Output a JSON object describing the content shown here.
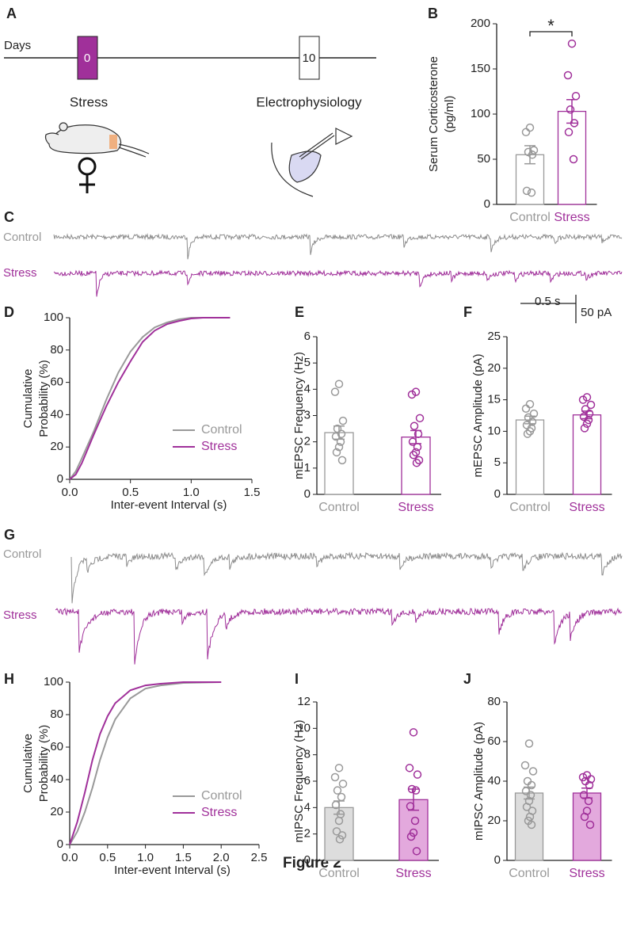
{
  "figure_title": "Figure 2",
  "panel_labels": [
    "A",
    "B",
    "C",
    "D",
    "E",
    "F",
    "G",
    "H",
    "I",
    "J"
  ],
  "timeline": {
    "axis_label": "Days",
    "day_start": "0",
    "day_end": "10",
    "event_start": "Stress",
    "event_end": "Electrophysiology"
  },
  "traces": {
    "control_label": "Control",
    "stress_label": "Stress",
    "time_scale": "0.5 s",
    "current_scale": "50 pA"
  },
  "chart_data": [
    {
      "type": "bar",
      "ylabel": [
        "Serum Corticosterone",
        "(pg/ml)"
      ],
      "categories": [
        "Control",
        "Stress"
      ],
      "values": [
        55,
        103
      ],
      "errors": [
        10,
        13
      ],
      "points": [
        [
          85,
          80,
          60,
          58,
          55,
          15,
          13
        ],
        [
          178,
          143,
          120,
          105,
          90,
          80,
          50
        ]
      ],
      "colors": [
        "#999999",
        "#a0309a"
      ],
      "fills": [
        "#ffffff",
        "#ffffff"
      ],
      "ylim": [
        0,
        200
      ],
      "yticks": [
        0,
        50,
        100,
        150,
        200
      ],
      "annotation": "*"
    },
    {
      "type": "line",
      "ylabel": [
        "Cumulative",
        "Probability (%)"
      ],
      "xlabel": "Inter-event Interval (s)",
      "series": [
        {
          "name": "Control",
          "color": "#999999",
          "x": [
            0,
            0.05,
            0.1,
            0.2,
            0.3,
            0.4,
            0.5,
            0.6,
            0.7,
            0.8,
            0.9,
            1.0,
            1.1,
            1.32
          ],
          "values": [
            0,
            5,
            13,
            30,
            49,
            66,
            79,
            88,
            94,
            97,
            99,
            100,
            100,
            100
          ]
        },
        {
          "name": "Stress",
          "color": "#a0309a",
          "x": [
            0,
            0.05,
            0.1,
            0.2,
            0.3,
            0.4,
            0.5,
            0.6,
            0.7,
            0.8,
            0.9,
            1.0,
            1.1,
            1.32
          ],
          "values": [
            0,
            3,
            10,
            28,
            45,
            60,
            73,
            85,
            92,
            96,
            98,
            99.5,
            100,
            100
          ]
        }
      ],
      "xlim": [
        0,
        1.5
      ],
      "xticks": [
        {
          "value": 0,
          "label": "0.0"
        },
        0.5,
        {
          "value": 1,
          "label": "1.0"
        },
        1.5
      ],
      "ylim": [
        0,
        100
      ],
      "yticks": [
        0,
        20,
        40,
        60,
        80,
        100
      ]
    },
    {
      "type": "bar",
      "ylabel": [
        "mEPSC Frequency (Hz)"
      ],
      "categories": [
        "Control",
        "Stress"
      ],
      "values": [
        2.35,
        2.18
      ],
      "errors": [
        0.25,
        0.25
      ],
      "points": [
        [
          4.2,
          3.9,
          2.8,
          2.5,
          2.3,
          2.2,
          2.0,
          1.8,
          1.6,
          1.3
        ],
        [
          3.9,
          3.8,
          2.9,
          2.6,
          2.3,
          2.0,
          1.8,
          1.6,
          1.5,
          1.3,
          1.2
        ]
      ],
      "colors": [
        "#999999",
        "#a0309a"
      ],
      "fills": [
        "#ffffff",
        "#ffffff"
      ],
      "ylim": [
        0,
        6
      ],
      "yticks": [
        0,
        1,
        2,
        3,
        4,
        5,
        6
      ]
    },
    {
      "type": "bar",
      "ylabel": [
        "mEPSC Amplitude (pA)"
      ],
      "categories": [
        "Control",
        "Stress"
      ],
      "values": [
        11.8,
        12.6
      ],
      "errors": [
        0.6,
        0.6
      ],
      "points": [
        [
          14.3,
          13.6,
          12.8,
          12.2,
          11.5,
          11,
          10.5,
          10,
          9.6
        ],
        [
          15.4,
          15,
          14.2,
          13.5,
          12.8,
          12.3,
          11.8,
          11.2,
          10.5
        ]
      ],
      "colors": [
        "#999999",
        "#a0309a"
      ],
      "fills": [
        "#ffffff",
        "#ffffff"
      ],
      "ylim": [
        0,
        25
      ],
      "yticks": [
        0,
        5,
        10,
        15,
        20,
        25
      ]
    },
    {
      "type": "line",
      "ylabel": [
        "Cumulative",
        "Probability (%)"
      ],
      "xlabel": "Inter-event Interval (s)",
      "series": [
        {
          "name": "Control",
          "color": "#999999",
          "x": [
            0,
            0.1,
            0.2,
            0.3,
            0.4,
            0.5,
            0.6,
            0.8,
            1.0,
            1.2,
            1.5,
            2.0
          ],
          "values": [
            0,
            8,
            20,
            35,
            52,
            66,
            77,
            90,
            96,
            98,
            99.5,
            100
          ]
        },
        {
          "name": "Stress",
          "color": "#a0309a",
          "x": [
            0,
            0.1,
            0.2,
            0.3,
            0.4,
            0.5,
            0.6,
            0.8,
            1.0,
            1.2,
            1.5,
            2.0
          ],
          "values": [
            0,
            14,
            32,
            52,
            68,
            79,
            87,
            95,
            98,
            99,
            100,
            100
          ]
        }
      ],
      "xlim": [
        0,
        2.5
      ],
      "xticks": [
        {
          "value": 0,
          "label": "0.0"
        },
        0.5,
        {
          "value": 1,
          "label": "1.0"
        },
        1.5,
        {
          "value": 2,
          "label": "2.0"
        },
        2.5
      ],
      "ylim": [
        0,
        100
      ],
      "yticks": [
        0,
        20,
        40,
        60,
        80,
        100
      ]
    },
    {
      "type": "bar",
      "ylabel": [
        "mIPSC Frequency (Hz)"
      ],
      "categories": [
        "Control",
        "Stress"
      ],
      "values": [
        4.0,
        4.6
      ],
      "errors": [
        0.5,
        0.8
      ],
      "points": [
        [
          7,
          6.3,
          5.8,
          5.3,
          4.8,
          4.2,
          3.5,
          3,
          2.2,
          1.9,
          1.6
        ],
        [
          9.7,
          7,
          6.5,
          5.4,
          5.3,
          4.1,
          3,
          2.1,
          1.8,
          0.7
        ]
      ],
      "colors": [
        "#999999",
        "#a0309a"
      ],
      "fills": [
        "#dddddd",
        "#e3a9dd"
      ],
      "ylim": [
        0,
        12
      ],
      "yticks": [
        0,
        2,
        4,
        6,
        8,
        10,
        12
      ]
    },
    {
      "type": "bar",
      "ylabel": [
        "mIPSC Amplitude (pA)"
      ],
      "categories": [
        "Control",
        "Stress"
      ],
      "values": [
        34,
        34
      ],
      "errors": [
        3,
        2.5
      ],
      "points": [
        [
          59,
          48,
          45,
          40,
          38,
          35,
          33,
          30,
          27,
          25,
          22,
          20,
          18
        ],
        [
          43,
          42,
          41,
          40,
          38,
          33,
          30,
          25,
          22,
          18
        ]
      ],
      "colors": [
        "#999999",
        "#a0309a"
      ],
      "fills": [
        "#dddddd",
        "#e3a9dd"
      ],
      "ylim": [
        0,
        80
      ],
      "yticks": [
        0,
        20,
        40,
        60,
        80
      ]
    }
  ]
}
